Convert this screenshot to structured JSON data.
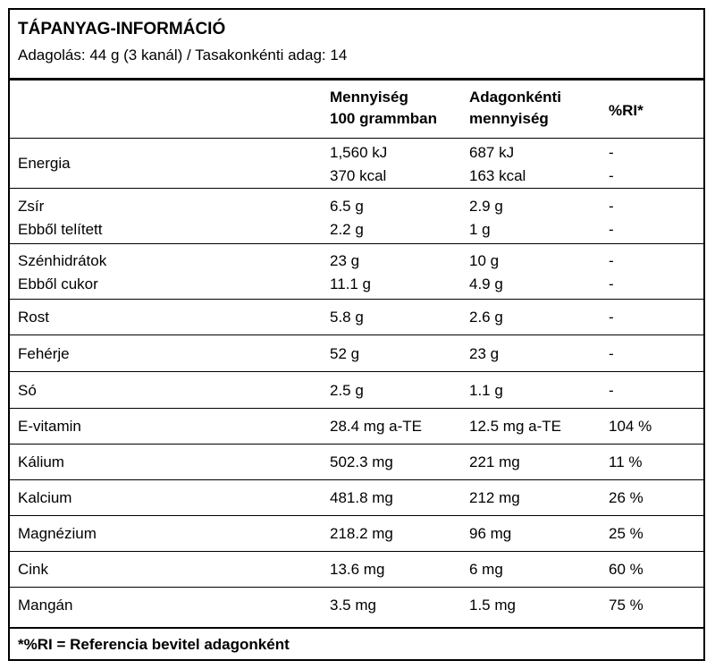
{
  "header": {
    "title": "TÁPANYAG-INFORMÁCIÓ",
    "serving": "Adagolás: 44 g (3 kanál) / Tasakonkénti adag: 14"
  },
  "columns": {
    "per100_line1": "Mennyiség",
    "per100_line2": "100 grammban",
    "perserving_line1": "Adagonkénti",
    "perserving_line2": "mennyiség",
    "ri": "%RI*"
  },
  "rows": {
    "energy": {
      "name": "Energia",
      "p100_a": "1,560 kJ",
      "p100_b": "370 kcal",
      "ps_a": "687 kJ",
      "ps_b": "163 kcal",
      "ri_a": "-",
      "ri_b": "-"
    },
    "fat": {
      "name_a": "Zsír",
      "name_b": "Ebből telített",
      "p100_a": "6.5 g",
      "p100_b": "2.2 g",
      "ps_a": "2.9 g",
      "ps_b": "1 g",
      "ri_a": "-",
      "ri_b": "-"
    },
    "carbs": {
      "name_a": "Szénhidrátok",
      "name_b": "Ebből cukor",
      "p100_a": "23 g",
      "p100_b": "11.1 g",
      "ps_a": "10 g",
      "ps_b": "4.9 g",
      "ri_a": "-",
      "ri_b": "-"
    },
    "fibre": {
      "name": "Rost",
      "p100": "5.8 g",
      "ps": "2.6 g",
      "ri": "-"
    },
    "protein": {
      "name": "Fehérje",
      "p100": "52 g",
      "ps": "23 g",
      "ri": "-"
    },
    "salt": {
      "name": "Só",
      "p100": "2.5 g",
      "ps": "1.1 g",
      "ri": "-"
    },
    "vitamin_e": {
      "name": "E-vitamin",
      "p100": "28.4 mg a-TE",
      "ps": "12.5 mg a-TE",
      "ri": "104 %"
    },
    "potassium": {
      "name": "Kálium",
      "p100": "502.3 mg",
      "ps": "221 mg",
      "ri": "11 %"
    },
    "calcium": {
      "name": "Kalcium",
      "p100": "481.8 mg",
      "ps": "212 mg",
      "ri": "26 %"
    },
    "magnesium": {
      "name": "Magnézium",
      "p100": "218.2 mg",
      "ps": "96 mg",
      "ri": "25 %"
    },
    "zinc": {
      "name": "Cink",
      "p100": "13.6 mg",
      "ps": "6 mg",
      "ri": "60 %"
    },
    "manganese": {
      "name": "Mangán",
      "p100": "3.5 mg",
      "ps": "1.5 mg",
      "ri": "75 %"
    }
  },
  "footer": {
    "note": "*%RI = Referencia bevitel adagonként"
  }
}
